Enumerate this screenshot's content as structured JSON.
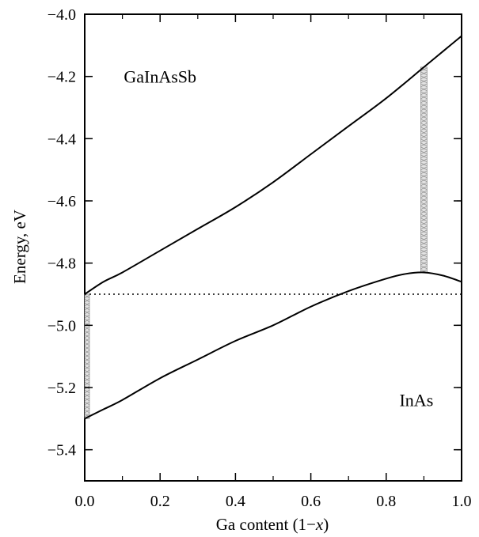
{
  "chart_data": {
    "type": "line",
    "xlabel": {
      "prefix": "Ga content (1",
      "minus": "−",
      "var": "x",
      "suffix": ")"
    },
    "ylabel": "Energy, eV",
    "xlim": [
      0.0,
      1.0
    ],
    "ylim": [
      -5.5,
      -4.0
    ],
    "xticks": [
      0.0,
      0.2,
      0.4,
      0.6,
      0.8,
      1.0
    ],
    "xtick_labels": [
      "0.0",
      "0.2",
      "0.4",
      "0.6",
      "0.8",
      "1.0"
    ],
    "yticks": [
      -4.0,
      -4.2,
      -4.4,
      -4.6,
      -4.8,
      -5.0,
      -5.2,
      -5.4
    ],
    "ytick_labels": [
      "−4.0",
      "−4.2",
      "−4.4",
      "−4.6",
      "−4.8",
      "−5.0",
      "−5.2",
      "−5.4"
    ],
    "series": [
      {
        "x": [
          0.0,
          0.05,
          0.1,
          0.2,
          0.3,
          0.4,
          0.5,
          0.6,
          0.7,
          0.8,
          0.9,
          0.95,
          1.0
        ],
        "y": [
          -4.9,
          -4.86,
          -4.83,
          -4.76,
          -4.69,
          -4.62,
          -4.54,
          -4.45,
          -4.36,
          -4.27,
          -4.17,
          -4.12,
          -4.07
        ],
        "style": "solid"
      },
      {
        "x": [
          0.0,
          0.05,
          0.1,
          0.2,
          0.3,
          0.4,
          0.5,
          0.6,
          0.7,
          0.8,
          0.85,
          0.9,
          0.95,
          1.0
        ],
        "y": [
          -5.3,
          -5.27,
          -5.24,
          -5.17,
          -5.11,
          -5.05,
          -5.0,
          -4.94,
          -4.89,
          -4.85,
          -4.835,
          -4.83,
          -4.84,
          -4.86
        ],
        "style": "solid"
      }
    ],
    "reference_line": {
      "y": -4.9,
      "style": "dotted"
    },
    "shaded_bands": [
      {
        "x": 0.0,
        "y_from": -5.3,
        "y_to": -4.9
      },
      {
        "x": 0.9,
        "y_from": -4.83,
        "y_to": -4.17
      }
    ],
    "annotations": [
      {
        "text": "GaInAsSb",
        "x": 0.2,
        "y": -4.22
      },
      {
        "text": "InAs",
        "x": 0.88,
        "y": -5.26
      }
    ],
    "grid": false,
    "minor_ticks": true
  }
}
